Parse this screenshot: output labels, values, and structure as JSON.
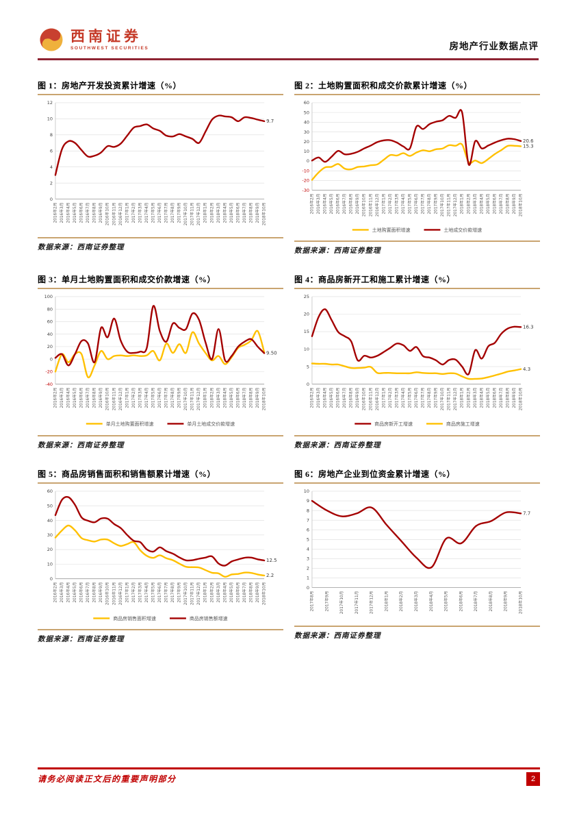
{
  "page": {
    "brand_cn": "西南证券",
    "brand_en": "SOUTHWEST SECURITIES",
    "header_title": "房地产行业数据点评",
    "source_label": "数据来源：西南证券整理",
    "footer_note": "请务必阅读正文后的重要声明部分",
    "page_number": "2"
  },
  "colors": {
    "line_red": "#A40000",
    "line_gold": "#FFC000",
    "rule_tan": "#C9A470",
    "header_rule": "#8E2433",
    "footer_red": "#C00000",
    "negative_tick": "#C00000",
    "tick_text": "#595959"
  },
  "chart_data": [
    {
      "type": "line",
      "title": "图 1：房地产开发投资累计增速（%）",
      "ylim": [
        0,
        12
      ],
      "ytick_step": 2,
      "legend": false,
      "categories": [
        "2016年2月",
        "2016年3月",
        "2016年4月",
        "2016年5月",
        "2016年6月",
        "2016年7月",
        "2016年8月",
        "2016年9月",
        "2016年10月",
        "2016年11月",
        "2016年12月",
        "2017年1月",
        "2017年2月",
        "2017年3月",
        "2017年4月",
        "2017年5月",
        "2017年6月",
        "2017年7月",
        "2017年8月",
        "2017年9月",
        "2017年10月",
        "2017年11月",
        "2017年12月",
        "2018年1月",
        "2018年2月",
        "2018年3月",
        "2018年4月",
        "2018年5月",
        "2018年6月",
        "2018年7月",
        "2018年8月",
        "2018年9月",
        "2018年10月"
      ],
      "series": [
        {
          "name": "房地产开发投资累计增速",
          "color": "#A40000",
          "end_label": "9.7",
          "values": [
            3.0,
            6.2,
            7.2,
            7.0,
            6.1,
            5.3,
            5.4,
            5.8,
            6.6,
            6.5,
            6.9,
            7.9,
            8.9,
            9.1,
            9.3,
            8.8,
            8.5,
            7.9,
            7.8,
            8.1,
            7.8,
            7.5,
            7.0,
            8.4,
            9.9,
            10.4,
            10.3,
            10.2,
            9.7,
            10.2,
            10.1,
            9.9,
            9.7
          ]
        }
      ]
    },
    {
      "type": "line",
      "title": "图 2：土地购置面积和成交价款累计增速（%）",
      "ylim": [
        -30,
        60
      ],
      "ytick_step": 10,
      "legend": true,
      "categories": [
        "2016年2月",
        "2016年3月",
        "2016年4月",
        "2016年5月",
        "2016年6月",
        "2016年7月",
        "2016年8月",
        "2016年9月",
        "2016年10月",
        "2016年11月",
        "2016年12月",
        "2017年1月",
        "2017年2月",
        "2017年3月",
        "2017年4月",
        "2017年5月",
        "2017年6月",
        "2017年7月",
        "2017年8月",
        "2017年9月",
        "2017年10月",
        "2017年11月",
        "2017年12月",
        "2018年1月",
        "2018年2月",
        "2018年3月",
        "2018年4月",
        "2018年5月",
        "2018年6月",
        "2018年7月",
        "2018年8月",
        "2018年9月",
        "2018年10月"
      ],
      "series": [
        {
          "name": "土地购置面积增速",
          "color": "#FFC000",
          "end_label": "15.3",
          "values": [
            -19.4,
            -11.7,
            -6.5,
            -5.9,
            -3.0,
            -7.8,
            -8.5,
            -6.1,
            -5.5,
            -4.3,
            -3.4,
            1.4,
            6.2,
            5.7,
            8.1,
            5.3,
            8.8,
            11.1,
            10.1,
            12.2,
            12.9,
            16.3,
            15.8,
            17.0,
            -1.2,
            0.5,
            -2.1,
            2.1,
            7.2,
            11.3,
            15.6,
            15.7,
            15.3
          ]
        },
        {
          "name": "土地成交价款增速",
          "color": "#A40000",
          "end_label": "20.6",
          "values": [
            0.5,
            3.7,
            -0.8,
            4.5,
            10.5,
            7.0,
            7.5,
            9.5,
            13.0,
            16.0,
            19.5,
            21.3,
            21.5,
            19.0,
            15.0,
            13.0,
            35.5,
            33.0,
            38.0,
            40.5,
            42.0,
            46.5,
            44.5,
            50.0,
            -3.5,
            20.5,
            13.0,
            16.0,
            19.0,
            21.5,
            23.0,
            22.5,
            20.6
          ]
        }
      ]
    },
    {
      "type": "line",
      "title": "图 3：单月土地购置面积和成交价款增速（%）",
      "ylim": [
        -40,
        100
      ],
      "ytick_step": 20,
      "legend": true,
      "categories": [
        "2016年2月",
        "2016年3月",
        "2016年4月",
        "2016年5月",
        "2016年6月",
        "2016年7月",
        "2016年8月",
        "2016年9月",
        "2016年10月",
        "2016年11月",
        "2016年12月",
        "2017年1月",
        "2017年2月",
        "2017年3月",
        "2017年4月",
        "2017年5月",
        "2017年6月",
        "2017年7月",
        "2017年8月",
        "2017年9月",
        "2017年10月",
        "2017年11月",
        "2017年12月",
        "2018年1月",
        "2018年2月",
        "2018年3月",
        "2018年4月",
        "2018年5月",
        "2018年6月",
        "2018年7月",
        "2018年8月",
        "2018年9月",
        "2018年10月"
      ],
      "series": [
        {
          "name": "单月土地购置面积增速",
          "color": "#FFC000",
          "values": [
            -20,
            8,
            -5,
            8,
            8,
            -29,
            -10,
            13,
            0,
            5,
            6,
            5,
            6,
            5,
            6,
            13,
            -2,
            25,
            10,
            24,
            10,
            43,
            25,
            10,
            -2,
            5,
            -8,
            3,
            18,
            23,
            30,
            45,
            11
          ]
        },
        {
          "name": "单月土地成交价款增速",
          "color": "#A40000",
          "end_label": "9.50",
          "values": [
            2,
            8,
            -10,
            8,
            29,
            25,
            -5,
            50,
            35,
            65,
            30,
            12,
            10,
            12,
            18,
            85,
            45,
            28,
            57,
            50,
            48,
            73,
            63,
            27,
            0,
            48,
            -2,
            5,
            20,
            28,
            32,
            20,
            9.5
          ]
        }
      ]
    },
    {
      "type": "line",
      "title": "图 4：商品房新开工和施工累计增速（%）",
      "ylim": [
        0,
        25
      ],
      "ytick_step": 5,
      "legend": true,
      "categories": [
        "2016年2月",
        "2016年3月",
        "2016年4月",
        "2016年5月",
        "2016年6月",
        "2016年7月",
        "2016年8月",
        "2016年9月",
        "2016年10月",
        "2016年11月",
        "2016年12月",
        "2017年1月",
        "2017年2月",
        "2017年3月",
        "2017年4月",
        "2017年5月",
        "2017年6月",
        "2017年7月",
        "2017年8月",
        "2017年9月",
        "2017年10月",
        "2017年11月",
        "2017年12月",
        "2018年1月",
        "2018年2月",
        "2018年3月",
        "2018年4月",
        "2018年5月",
        "2018年6月",
        "2018年7月",
        "2018年8月",
        "2018年9月",
        "2018年10月"
      ],
      "series": [
        {
          "name": "商品房新开工增速",
          "color": "#A40000",
          "end_label": "16.3",
          "values": [
            13.7,
            19.2,
            21.4,
            18.3,
            14.9,
            13.7,
            12.2,
            6.8,
            8.1,
            7.6,
            8.1,
            9.2,
            10.4,
            11.6,
            11.1,
            9.5,
            10.6,
            8.0,
            7.6,
            6.8,
            5.6,
            6.9,
            7.0,
            5.0,
            2.9,
            9.7,
            7.3,
            10.8,
            11.8,
            14.4,
            15.9,
            16.4,
            16.3
          ]
        },
        {
          "name": "商品房施工增速",
          "color": "#FFC000",
          "end_label": "4.3",
          "values": [
            5.9,
            5.8,
            5.8,
            5.6,
            5.6,
            5.1,
            4.6,
            4.6,
            4.7,
            4.9,
            3.2,
            3.2,
            3.2,
            3.1,
            3.1,
            3.1,
            3.4,
            3.2,
            3.1,
            3.1,
            2.9,
            3.1,
            3.0,
            2.2,
            1.5,
            1.5,
            1.6,
            2.0,
            2.5,
            3.0,
            3.6,
            3.9,
            4.3
          ]
        }
      ]
    },
    {
      "type": "line",
      "title": "图 5：商品房销售面积和销售额累计增速（%）",
      "ylim": [
        0,
        60
      ],
      "ytick_step": 10,
      "legend": true,
      "categories": [
        "2016年2月",
        "2016年3月",
        "2016年4月",
        "2016年5月",
        "2016年6月",
        "2016年7月",
        "2016年8月",
        "2016年9月",
        "2016年10月",
        "2016年11月",
        "2016年12月",
        "2017年1月",
        "2017年2月",
        "2017年3月",
        "2017年4月",
        "2017年5月",
        "2017年6月",
        "2017年7月",
        "2017年8月",
        "2017年9月",
        "2017年10月",
        "2017年11月",
        "2017年12月",
        "2018年1月",
        "2018年2月",
        "2018年3月",
        "2018年4月",
        "2018年5月",
        "2018年6月",
        "2018年7月",
        "2018年8月",
        "2018年9月",
        "2018年10月"
      ],
      "series": [
        {
          "name": "商品房销售面积增速",
          "color": "#FFC000",
          "end_label": "2.2",
          "values": [
            28.2,
            33.1,
            36.5,
            33.2,
            27.9,
            26.4,
            25.5,
            26.9,
            26.8,
            24.3,
            22.5,
            23.7,
            25.1,
            19.5,
            15.7,
            14.3,
            16.1,
            14.0,
            12.7,
            10.3,
            8.2,
            7.9,
            7.7,
            5.9,
            4.1,
            3.6,
            1.3,
            2.9,
            3.3,
            4.2,
            4.0,
            2.9,
            2.2
          ]
        },
        {
          "name": "商品房销售额增速",
          "color": "#A40000",
          "end_label": "12.5",
          "values": [
            43.6,
            54.1,
            55.9,
            50.7,
            42.1,
            39.8,
            38.7,
            41.3,
            41.2,
            37.5,
            34.8,
            30.0,
            26.0,
            25.1,
            20.1,
            18.6,
            21.5,
            18.9,
            17.2,
            14.6,
            12.6,
            12.7,
            13.7,
            14.5,
            15.3,
            10.4,
            9.0,
            11.8,
            13.2,
            14.4,
            14.5,
            13.3,
            12.5
          ]
        }
      ]
    },
    {
      "type": "line",
      "title": "图 6：房地产企业到位资金累计增速（%）",
      "ylim": [
        0,
        10
      ],
      "ytick_step": 1,
      "legend": false,
      "categories": [
        "2017年8月",
        "2017年9月",
        "2017年10月",
        "2017年11月",
        "2017年12月",
        "2018年1月",
        "2018年2月",
        "2018年3月",
        "2018年4月",
        "2018年5月",
        "2018年6月",
        "2018年7月",
        "2018年8月",
        "2018年9月",
        "2018年10月"
      ],
      "series": [
        {
          "name": "房地产企业到位资金累计增速",
          "color": "#A40000",
          "end_label": "7.7",
          "values": [
            9.0,
            8.0,
            7.4,
            7.7,
            8.3,
            6.5,
            4.8,
            3.1,
            2.1,
            5.1,
            4.6,
            6.4,
            6.9,
            7.8,
            7.7
          ]
        }
      ]
    }
  ]
}
